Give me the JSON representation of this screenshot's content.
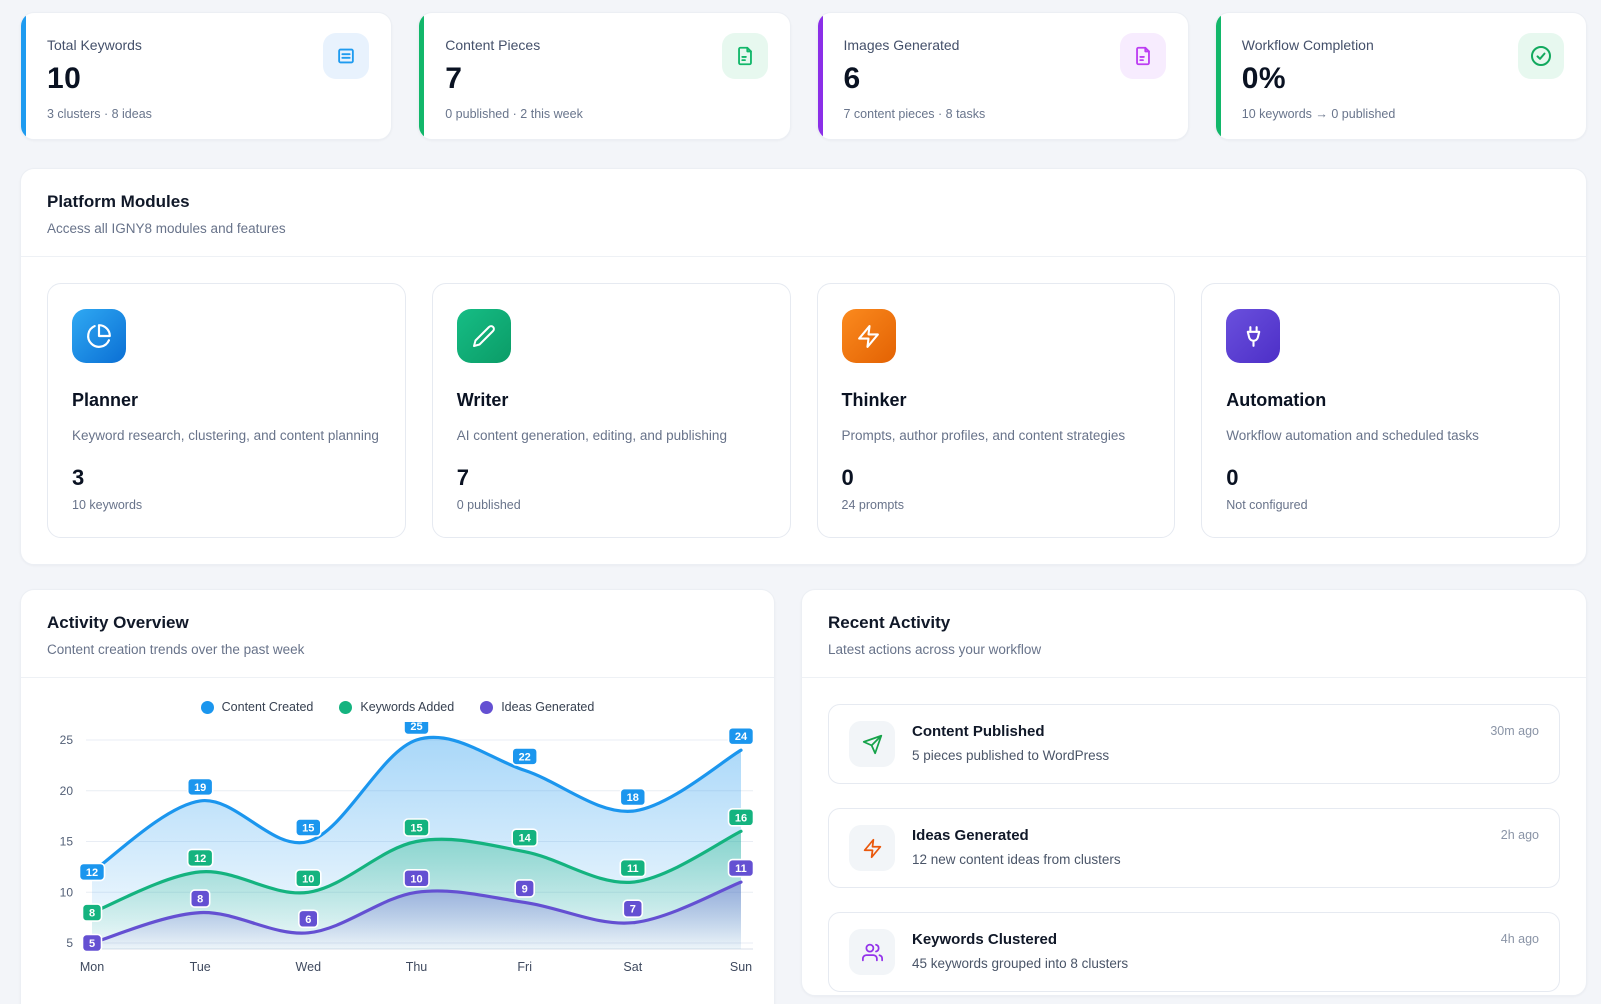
{
  "stats": [
    {
      "label": "Total Keywords",
      "value": "10",
      "sub": "3 clusters · 8 ideas",
      "accent": "#1e9bf0",
      "icon": "keywords-list-icon",
      "icon_color": "#1e9bf0",
      "icon_bg": "#e8f2fd"
    },
    {
      "label": "Content Pieces",
      "value": "7",
      "sub": "0 published · 2 this week",
      "accent": "#12b76a",
      "icon": "file-text-icon",
      "icon_color": "#12b76a",
      "icon_bg": "#e7f8ef"
    },
    {
      "label": "Images Generated",
      "value": "6",
      "sub": "7 content pieces · 8 tasks",
      "accent": "#8b2fe8",
      "icon": "file-image-icon",
      "icon_color": "#bc3df2",
      "icon_bg": "#f7ecfe"
    },
    {
      "label": "Workflow Completion",
      "value": "0%",
      "sub": "10 keywords → 0 published",
      "accent": "#12b76a",
      "icon": "check-circle-icon",
      "icon_color": "#12a95e",
      "icon_bg": "#e7f8ef"
    }
  ],
  "modules_panel": {
    "title": "Platform Modules",
    "subtitle": "Access all IGNY8 modules and features",
    "modules": [
      {
        "name": "Planner",
        "description": "Keyword research, clustering, and content planning",
        "value": "3",
        "sub": "10 keywords",
        "icon": "pie-chart-icon",
        "gradient": [
          "#2fa9f3",
          "#0b6fd4"
        ]
      },
      {
        "name": "Writer",
        "description": "AI content generation, editing, and publishing",
        "value": "7",
        "sub": "0 published",
        "icon": "pencil-icon",
        "gradient": [
          "#16bd85",
          "#0b9c67"
        ]
      },
      {
        "name": "Thinker",
        "description": "Prompts, author profiles, and content strategies",
        "value": "0",
        "sub": "24 prompts",
        "icon": "lightning-icon",
        "gradient": [
          "#fb8a1e",
          "#e36203"
        ]
      },
      {
        "name": "Automation",
        "description": "Workflow automation and scheduled tasks",
        "value": "0",
        "sub": "Not configured",
        "icon": "plug-icon",
        "gradient": [
          "#6a50dd",
          "#4d2fc7"
        ]
      }
    ]
  },
  "activity_overview": {
    "title": "Activity Overview",
    "subtitle": "Content creation trends over the past week"
  },
  "chart_data": {
    "type": "area",
    "x": [
      "Mon",
      "Tue",
      "Wed",
      "Thu",
      "Fri",
      "Sat",
      "Sun"
    ],
    "series": [
      {
        "name": "Content Created",
        "color": "#1b96ee",
        "values": [
          12,
          19,
          15,
          25,
          22,
          18,
          24
        ]
      },
      {
        "name": "Keywords Added",
        "color": "#14b37f",
        "values": [
          8,
          12,
          10,
          15,
          14,
          11,
          16
        ]
      },
      {
        "name": "Ideas Generated",
        "color": "#6450d2",
        "values": [
          5,
          8,
          6,
          10,
          9,
          7,
          11
        ]
      }
    ],
    "yticks": [
      5,
      10,
      15,
      20,
      25
    ],
    "ylim": [
      5,
      25
    ],
    "legend_position": "top",
    "grid": true
  },
  "recent_activity": {
    "title": "Recent Activity",
    "subtitle": "Latest actions across your workflow",
    "items": [
      {
        "title": "Content Published",
        "description": "5 pieces published to WordPress",
        "time": "30m ago",
        "icon": "send-icon",
        "icon_color": "#16a34a"
      },
      {
        "title": "Ideas Generated",
        "description": "12 new content ideas from clusters",
        "time": "2h ago",
        "icon": "lightning-icon",
        "icon_color": "#ea580c"
      },
      {
        "title": "Keywords Clustered",
        "description": "45 keywords grouped into 8 clusters",
        "time": "4h ago",
        "icon": "users-icon",
        "icon_color": "#9333ea"
      }
    ]
  }
}
